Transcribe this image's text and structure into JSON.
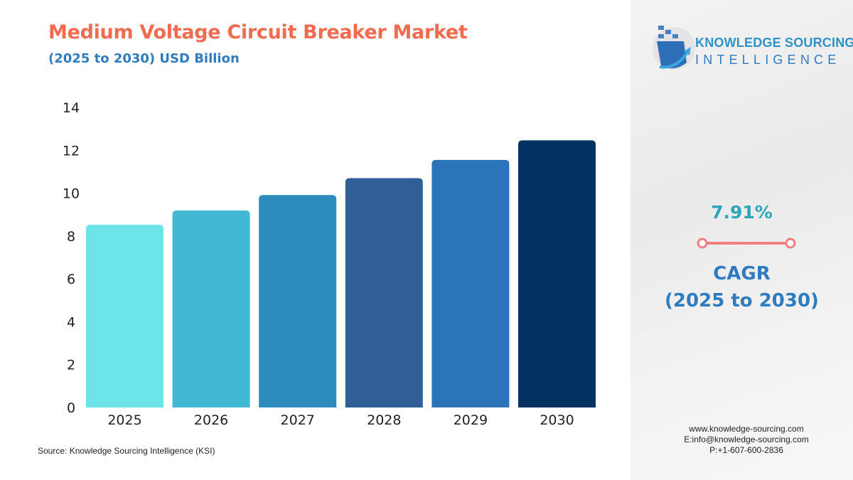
{
  "header": {
    "title": "Medium Voltage Circuit Breaker Market",
    "subtitle": "(2025 to 2030) USD Billion"
  },
  "logo": {
    "line1": "KNOWLEDGE SOURCING",
    "line2": "INTELLIGENCE"
  },
  "cagr": {
    "value": "7.91%",
    "label": "CAGR",
    "period": "(2025 to 2030)",
    "accent_color": "#f08080"
  },
  "contact": {
    "website": "www.knowledge-sourcing.com",
    "email": "E:info@knowledge-sourcing.com",
    "phone": "P:+1-607-600-2836"
  },
  "source": "Source: Knowledge Sourcing Intelligence (KSI)",
  "chart_data": {
    "type": "bar",
    "title": "Medium Voltage Circuit Breaker Market",
    "subtitle": "(2025 to 2030) USD Billion",
    "categories": [
      "2025",
      "2026",
      "2027",
      "2028",
      "2029",
      "2030"
    ],
    "values": [
      8.52,
      9.19,
      9.91,
      10.7,
      11.55,
      12.46
    ],
    "colors": [
      "#6ce4e8",
      "#43b8d4",
      "#2e8cbc",
      "#2f5f96",
      "#2c74ba",
      "#023262"
    ],
    "ylim": [
      0,
      14
    ],
    "yticks": [
      "0",
      "2",
      "4",
      "6",
      "8",
      "10",
      "12",
      "14"
    ],
    "grid": false,
    "xlabel": "",
    "ylabel": ""
  }
}
